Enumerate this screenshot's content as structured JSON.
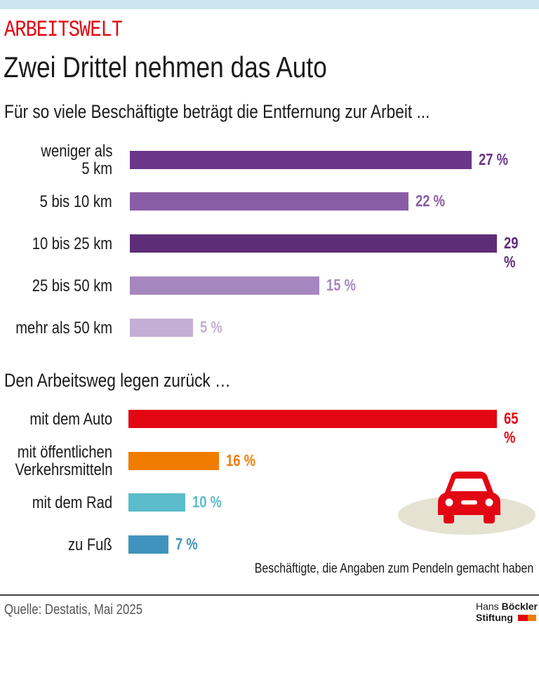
{
  "kicker": "ARBEITSWELT",
  "title": "Zwei Drittel nehmen das Auto",
  "chart_data": [
    {
      "type": "bar",
      "orientation": "horizontal",
      "title": "Für so viele Beschäftigte beträgt die Entfernung zur Arbeit ...",
      "categories": [
        "weniger als 5 km",
        "5 bis 10 km",
        "10 bis 25 km",
        "25 bis 50 km",
        "mehr als 50 km"
      ],
      "category_lines": [
        [
          "weniger als",
          "5 km"
        ],
        [
          "5 bis 10 km"
        ],
        [
          "10 bis 25 km"
        ],
        [
          "25 bis 50 km"
        ],
        [
          "mehr als 50 km"
        ]
      ],
      "values": [
        27,
        22,
        29,
        15,
        5
      ],
      "labels": [
        "27 %",
        "22 %",
        "29 %",
        "15 %",
        "5 %"
      ],
      "colors": [
        "#6b3589",
        "#8a5ca6",
        "#5e2d78",
        "#a686bf",
        "#c4aed6"
      ],
      "xlim": [
        0,
        29
      ]
    },
    {
      "type": "bar",
      "orientation": "horizontal",
      "title": "Den Arbeitsweg legen zurück …",
      "categories": [
        "mit dem Auto",
        "mit öffentlichen Verkehrsmitteln",
        "mit dem Rad",
        "zu Fuß"
      ],
      "category_lines": [
        [
          "mit dem Auto"
        ],
        [
          "mit öffentlichen",
          "Verkehrsmitteln"
        ],
        [
          "mit dem Rad"
        ],
        [
          "zu Fuß"
        ]
      ],
      "values": [
        65,
        16,
        10,
        7
      ],
      "labels": [
        "65 %",
        "16 %",
        "10 %",
        "7 %"
      ],
      "colors": [
        "#e30613",
        "#f07d00",
        "#5bbccb",
        "#3f93bd"
      ],
      "xlim": [
        0,
        65
      ],
      "note": "Beschäftigte, die Angaben zum Pendeln gemacht haben"
    }
  ],
  "icons": {
    "car": "car-icon"
  },
  "source": "Quelle: Destatis, Mai 2025",
  "logo": {
    "line1a": "Hans ",
    "line1b": "Böckler",
    "line2": "Stiftung",
    "colors": [
      "#e30613",
      "#f07d00"
    ]
  }
}
